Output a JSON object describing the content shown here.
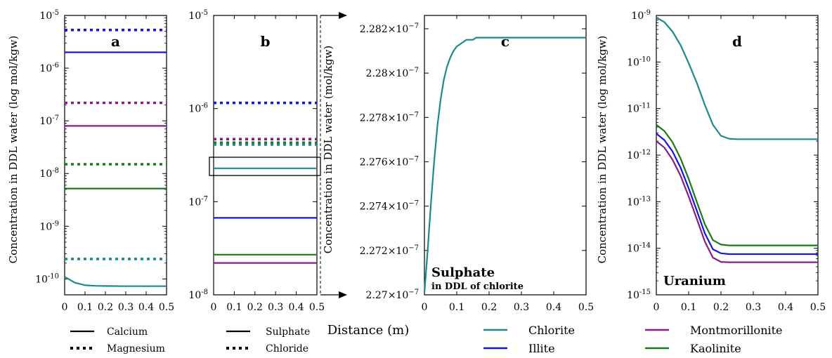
{
  "figure": {
    "shared_xlabel": "Distance (m)",
    "left_ylabel": "Concentration in DDL water (log mol/kgw)",
    "c_ylabel": "Concentration in DDL water (mol/kgw)",
    "d_ylabel": "Concentration in DDL water (log mol/kgw)"
  },
  "legends": {
    "panel_a": [
      {
        "label": "Calcium",
        "style": "solid"
      },
      {
        "label": "Magnesium",
        "style": "dotted"
      }
    ],
    "panel_b": [
      {
        "label": "Sulphate",
        "style": "solid"
      },
      {
        "label": "Chloride",
        "style": "dotted"
      }
    ],
    "clays": [
      {
        "label": "Chlorite",
        "color": "#1a8a8a"
      },
      {
        "label": "Illite",
        "color": "#1515e0"
      },
      {
        "label": "Montmorillonite",
        "color": "#8a1a8a"
      },
      {
        "label": "Kaolinite",
        "color": "#1a7a1a"
      }
    ]
  },
  "chart_data": [
    {
      "panel": "a",
      "type": "line",
      "yscale": "log",
      "xlim": [
        0,
        0.5
      ],
      "ylim": [
        5e-11,
        1e-05
      ],
      "xticks": [
        "0",
        "0.1",
        "0.2",
        "0.3",
        "0.4",
        "0.5"
      ],
      "series": [
        {
          "ion": "Magnesium",
          "clay": "Illite",
          "style": "dotted",
          "color": "#1515e0",
          "x": [
            0,
            0.5
          ],
          "y": [
            5.3e-06,
            5.3e-06
          ]
        },
        {
          "ion": "Calcium",
          "clay": "Illite",
          "style": "solid",
          "color": "#1515e0",
          "x": [
            0,
            0.5
          ],
          "y": [
            2e-06,
            2e-06
          ]
        },
        {
          "ion": "Magnesium",
          "clay": "Montmorillonite",
          "style": "dotted",
          "color": "#8a1a8a",
          "x": [
            0,
            0.5
          ],
          "y": [
            2.2e-07,
            2.2e-07
          ]
        },
        {
          "ion": "Calcium",
          "clay": "Montmorillonite",
          "style": "solid",
          "color": "#8a1a8a",
          "x": [
            0,
            0.5
          ],
          "y": [
            8e-08,
            8e-08
          ]
        },
        {
          "ion": "Magnesium",
          "clay": "Kaolinite",
          "style": "dotted",
          "color": "#1a7a1a",
          "x": [
            0,
            0.5
          ],
          "y": [
            1.5e-08,
            1.5e-08
          ]
        },
        {
          "ion": "Calcium",
          "clay": "Kaolinite",
          "style": "solid",
          "color": "#1a7a1a",
          "x": [
            0,
            0.5
          ],
          "y": [
            5.2e-09,
            5.2e-09
          ]
        },
        {
          "ion": "Magnesium",
          "clay": "Chlorite",
          "style": "dotted",
          "color": "#1a8a8a",
          "x": [
            0,
            0.5
          ],
          "y": [
            2.4e-10,
            2.4e-10
          ]
        },
        {
          "ion": "Calcium",
          "clay": "Chlorite",
          "style": "solid",
          "color": "#1a8a8a",
          "x": [
            0,
            0.05,
            0.1,
            0.15,
            0.2,
            0.3,
            0.5
          ],
          "y": [
            1.1e-10,
            8.5e-11,
            7.6e-11,
            7.4e-11,
            7.35e-11,
            7.3e-11,
            7.3e-11
          ]
        }
      ]
    },
    {
      "panel": "b",
      "type": "line",
      "yscale": "log",
      "xlim": [
        0,
        0.5
      ],
      "ylim": [
        1e-08,
        1e-05
      ],
      "xticks": [
        "0",
        "0.1",
        "0.2",
        "0.3",
        "0.4",
        "0.5"
      ],
      "series": [
        {
          "ion": "Chloride",
          "clay": "Illite",
          "style": "dotted",
          "color": "#1515e0",
          "x": [
            0,
            0.5
          ],
          "y": [
            1.15e-06,
            1.15e-06
          ]
        },
        {
          "ion": "Chloride",
          "clay": "Montmorillonite",
          "style": "dotted",
          "color": "#8a1a8a",
          "x": [
            0,
            0.5
          ],
          "y": [
            4.7e-07,
            4.7e-07
          ]
        },
        {
          "ion": "Chloride",
          "clay": "Kaolinite",
          "style": "dotted",
          "color": "#1a7a1a",
          "x": [
            0,
            0.5
          ],
          "y": [
            4.3e-07,
            4.3e-07
          ]
        },
        {
          "ion": "Chloride",
          "clay": "Chlorite",
          "style": "dotted",
          "color": "#1a8a8a",
          "x": [
            0,
            0.5
          ],
          "y": [
            4.1e-07,
            4.1e-07
          ]
        },
        {
          "ion": "Sulphate",
          "clay": "Chlorite",
          "style": "solid",
          "color": "#1a8a8a",
          "x": [
            0,
            0.5
          ],
          "y": [
            2.28e-07,
            2.28e-07
          ]
        },
        {
          "ion": "Sulphate",
          "clay": "Illite",
          "style": "solid",
          "color": "#1515e0",
          "x": [
            0,
            0.5
          ],
          "y": [
            6.7e-08,
            6.7e-08
          ]
        },
        {
          "ion": "Sulphate",
          "clay": "Kaolinite",
          "style": "solid",
          "color": "#1a7a1a",
          "x": [
            0,
            0.5
          ],
          "y": [
            2.7e-08,
            2.7e-08
          ]
        },
        {
          "ion": "Sulphate",
          "clay": "Montmorillonite",
          "style": "solid",
          "color": "#8a1a8a",
          "x": [
            0,
            0.5
          ],
          "y": [
            2.2e-08,
            2.2e-08
          ]
        }
      ]
    },
    {
      "panel": "c",
      "type": "line",
      "yscale": "linear",
      "xlim": [
        0,
        0.5
      ],
      "ylim": [
        2.27e-07,
        2.2826e-07
      ],
      "xticks": [
        "0",
        "0.1",
        "0.2",
        "0.3",
        "0.4",
        "0.5"
      ],
      "annotation_title": "Sulphate",
      "annotation_sub": "in DDL of chlorite",
      "series": [
        {
          "ion": "Sulphate",
          "clay": "Chlorite",
          "style": "solid",
          "color": "#1a8a8a",
          "x": [
            0,
            0.01,
            0.02,
            0.03,
            0.04,
            0.05,
            0.06,
            0.07,
            0.08,
            0.09,
            0.1,
            0.11,
            0.12,
            0.13,
            0.14,
            0.15,
            0.16,
            0.17,
            0.18,
            0.19,
            0.2,
            0.25,
            0.3,
            0.4,
            0.5
          ],
          "y": [
            2.2701e-07,
            2.272e-07,
            2.2741e-07,
            2.276e-07,
            2.2776e-07,
            2.2788e-07,
            2.2797e-07,
            2.2803e-07,
            2.2807e-07,
            2.281e-07,
            2.2812e-07,
            2.2813e-07,
            2.2814e-07,
            2.2815e-07,
            2.2815e-07,
            2.2815e-07,
            2.2816e-07,
            2.2816e-07,
            2.2816e-07,
            2.2816e-07,
            2.2816e-07,
            2.2816e-07,
            2.2816e-07,
            2.2816e-07,
            2.2816e-07
          ]
        }
      ]
    },
    {
      "panel": "d",
      "type": "line",
      "yscale": "log",
      "xlim": [
        0,
        0.5
      ],
      "ylim": [
        1e-15,
        1e-09
      ],
      "xticks": [
        "0",
        "0.1",
        "0.2",
        "0.3",
        "0.4",
        "0.5"
      ],
      "annotation_title": "Uranium",
      "series": [
        {
          "ion": "Uranium",
          "clay": "Chlorite",
          "style": "solid",
          "color": "#1a8a8a",
          "x": [
            0,
            0.025,
            0.05,
            0.075,
            0.1,
            0.125,
            0.15,
            0.175,
            0.2,
            0.225,
            0.25,
            0.3,
            0.4,
            0.5
          ],
          "y": [
            9e-10,
            7.2e-10,
            4.5e-10,
            2.3e-10,
            9.5e-11,
            3.6e-11,
            1.2e-11,
            4.5e-12,
            2.6e-12,
            2.25e-12,
            2.2e-12,
            2.2e-12,
            2.2e-12,
            2.2e-12
          ]
        },
        {
          "ion": "Uranium",
          "clay": "Kaolinite",
          "style": "solid",
          "color": "#1a7a1a",
          "x": [
            0,
            0.025,
            0.05,
            0.075,
            0.1,
            0.125,
            0.15,
            0.175,
            0.2,
            0.225,
            0.25,
            0.3,
            0.4,
            0.5
          ],
          "y": [
            4.5e-12,
            3.3e-12,
            1.9e-12,
            8.5e-13,
            3.1e-13,
            1e-13,
            3.3e-14,
            1.5e-14,
            1.2e-14,
            1.15e-14,
            1.15e-14,
            1.15e-14,
            1.15e-14,
            1.15e-14
          ]
        },
        {
          "ion": "Uranium",
          "clay": "Illite",
          "style": "solid",
          "color": "#1515e0",
          "x": [
            0,
            0.025,
            0.05,
            0.075,
            0.1,
            0.125,
            0.15,
            0.175,
            0.2,
            0.225,
            0.25,
            0.3,
            0.4,
            0.5
          ],
          "y": [
            2.9e-12,
            2.1e-12,
            1.2e-12,
            5.4e-13,
            1.95e-13,
            6.5e-14,
            2.1e-14,
            9.5e-15,
            7.8e-15,
            7.5e-15,
            7.5e-15,
            7.5e-15,
            7.5e-15,
            7.5e-15
          ]
        },
        {
          "ion": "Uranium",
          "clay": "Montmorillonite",
          "style": "solid",
          "color": "#8a1a8a",
          "x": [
            0,
            0.025,
            0.05,
            0.075,
            0.1,
            0.125,
            0.15,
            0.175,
            0.2,
            0.225,
            0.25,
            0.3,
            0.4,
            0.5
          ],
          "y": [
            2e-12,
            1.45e-12,
            8e-13,
            3.6e-13,
            1.3e-13,
            4.3e-14,
            1.4e-14,
            6.3e-15,
            5.1e-15,
            5e-15,
            5e-15,
            5e-15,
            5e-15,
            5e-15
          ]
        }
      ]
    }
  ]
}
